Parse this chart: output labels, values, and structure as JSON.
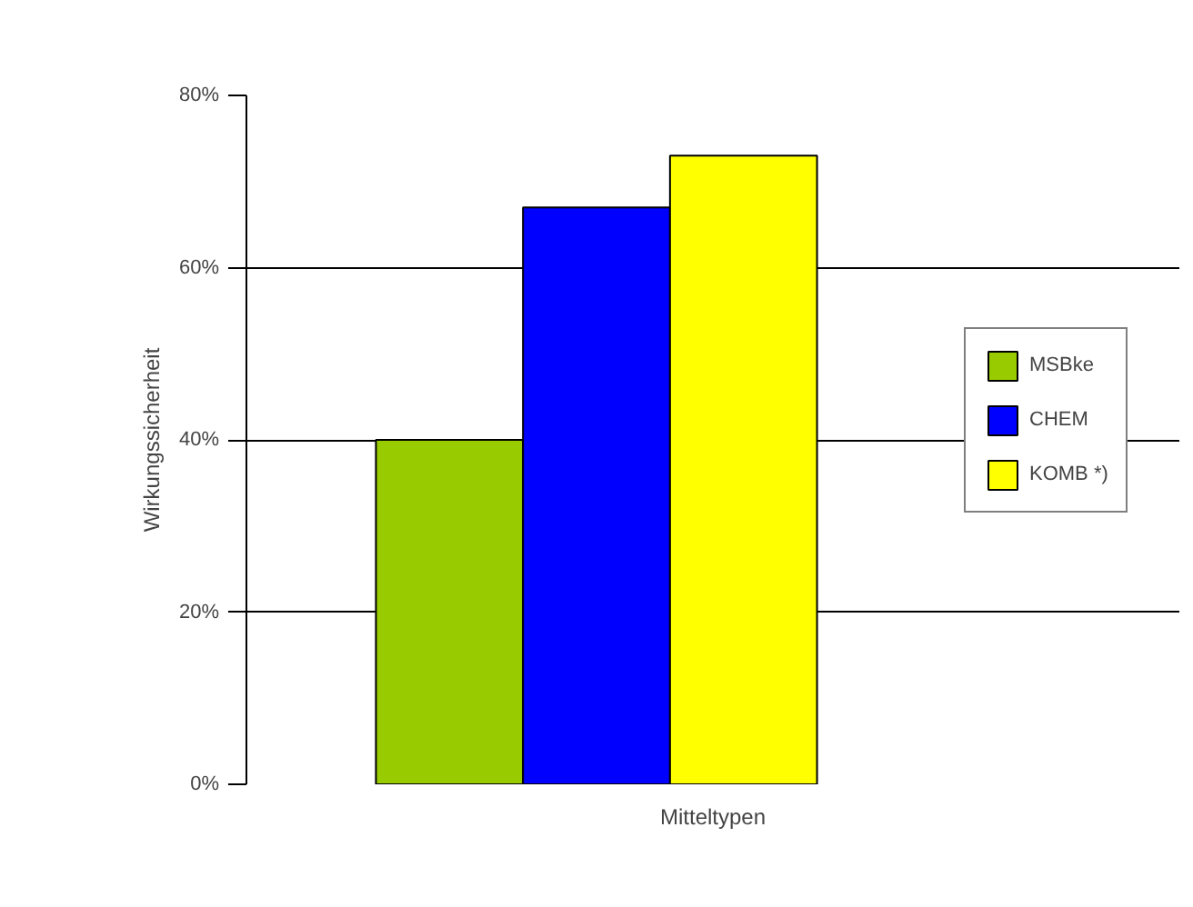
{
  "chart_data": {
    "type": "bar",
    "xlabel": "Mitteltypen",
    "ylabel": "Wirkungssicherheit",
    "categories": [
      null
    ],
    "series": [
      {
        "name": "MSBke",
        "color": "#99cc00",
        "values": [
          40
        ]
      },
      {
        "name": "CHEM",
        "color": "#0000ff",
        "values": [
          67
        ]
      },
      {
        "name": "KOMB *)",
        "color": "#ffff00",
        "values": [
          73
        ]
      }
    ],
    "ylim": [
      0,
      80
    ],
    "yticks": [
      {
        "value": 0,
        "label": "0%"
      },
      {
        "value": 20,
        "label": "20%"
      },
      {
        "value": 40,
        "label": "40%"
      },
      {
        "value": 60,
        "label": "60%"
      },
      {
        "value": 80,
        "label": "80%"
      }
    ],
    "grid": "y",
    "legend": "right"
  }
}
